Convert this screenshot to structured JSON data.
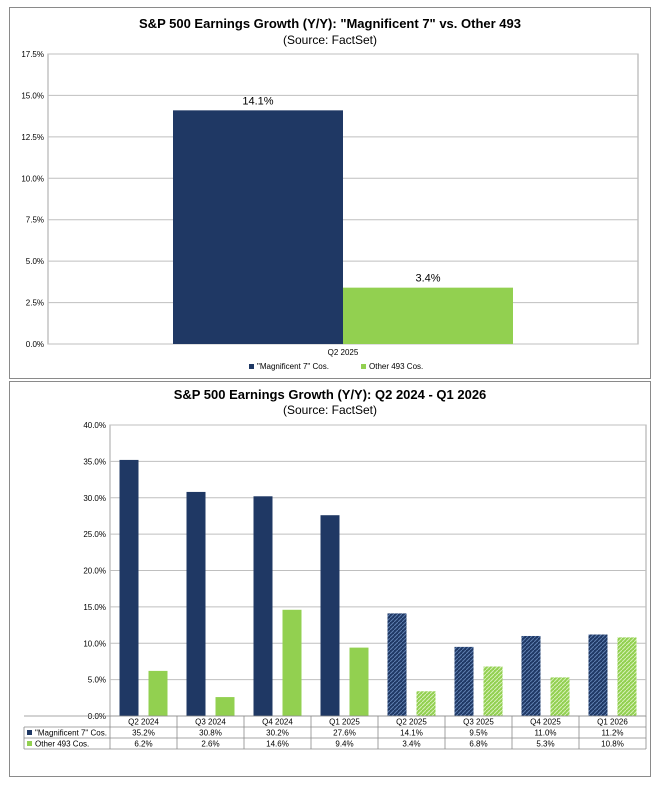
{
  "chart_data": [
    {
      "type": "bar",
      "title": "S&P 500 Earnings Growth (Y/Y): \"Magnificent 7\" vs. Other 493",
      "subtitle": "(Source: FactSet)",
      "categories": [
        "Q2 2025"
      ],
      "series": [
        {
          "name": "\"Magnificent 7\" Cos.",
          "values": [
            14.1
          ],
          "labels": [
            "14.1%"
          ],
          "color": "#1f3864"
        },
        {
          "name": "Other 493 Cos.",
          "values": [
            3.4
          ],
          "labels": [
            "3.4%"
          ],
          "color": "#92d050"
        }
      ],
      "ylim": [
        0,
        17.5
      ],
      "yticks": [
        "0.0%",
        "2.5%",
        "5.0%",
        "7.5%",
        "10.0%",
        "12.5%",
        "15.0%",
        "17.5%"
      ],
      "legend": "bottom",
      "grid": true
    },
    {
      "type": "bar",
      "title": "S&P 500 Earnings Growth (Y/Y): Q2 2024 - Q1 2026",
      "subtitle": "(Source: FactSet)",
      "categories": [
        "Q2 2024",
        "Q3 2024",
        "Q4 2024",
        "Q1 2025",
        "Q2 2025",
        "Q3 2025",
        "Q4 2025",
        "Q1 2026"
      ],
      "series": [
        {
          "name": "\"Magnificent 7\" Cos.",
          "values": [
            35.2,
            30.8,
            30.2,
            27.6,
            14.1,
            9.5,
            11.0,
            11.2
          ],
          "labels": [
            "35.2%",
            "30.8%",
            "30.2%",
            "27.6%",
            "14.1%",
            "9.5%",
            "11.0%",
            "11.2%"
          ],
          "color": "#1f3864"
        },
        {
          "name": "Other 493 Cos.",
          "values": [
            6.2,
            2.6,
            14.6,
            9.4,
            3.4,
            6.8,
            5.3,
            10.8
          ],
          "labels": [
            "6.2%",
            "2.6%",
            "14.6%",
            "9.4%",
            "3.4%",
            "6.8%",
            "5.3%",
            "10.8%"
          ],
          "color": "#92d050"
        }
      ],
      "estimate_from_index": 4,
      "ylim": [
        0,
        40
      ],
      "yticks": [
        "0.0%",
        "5.0%",
        "10.0%",
        "15.0%",
        "20.0%",
        "25.0%",
        "30.0%",
        "35.0%",
        "40.0%"
      ],
      "legend": "data-table",
      "grid": true
    }
  ]
}
